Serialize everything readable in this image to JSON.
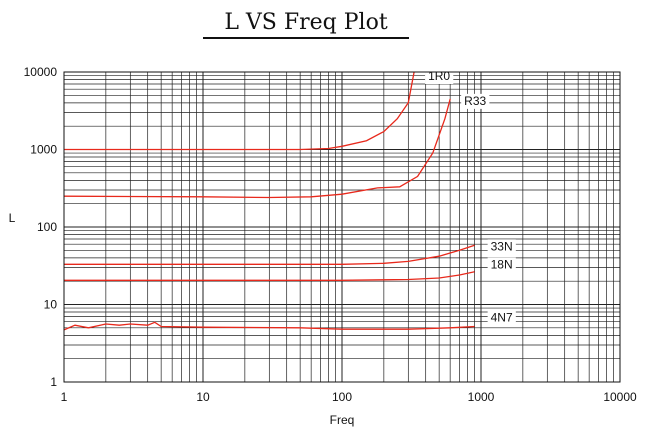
{
  "chart_data": {
    "type": "line",
    "title": "L VS Freq Plot",
    "xlabel": "Freq",
    "ylabel": "L",
    "xscale": "log",
    "yscale": "log",
    "xlim": [
      1,
      10000
    ],
    "ylim": [
      1,
      10000
    ],
    "grid": true,
    "legend": "inline labels at line ends",
    "line_color": "#e8291c",
    "x_ticks": [
      "1",
      "10",
      "100",
      "1000",
      "10000"
    ],
    "y_ticks": [
      "1",
      "10",
      "100",
      "1000",
      "10000"
    ],
    "series": [
      {
        "name": "1R0",
        "x": [
          1,
          10,
          50,
          80,
          100,
          150,
          200,
          250,
          300,
          330
        ],
        "y": [
          1000,
          1000,
          1000,
          1030,
          1100,
          1300,
          1700,
          2500,
          4000,
          10000
        ]
      },
      {
        "name": "R33",
        "x": [
          1,
          10,
          30,
          60,
          100,
          180,
          260,
          350,
          450,
          550,
          600
        ],
        "y": [
          250,
          245,
          240,
          245,
          265,
          320,
          330,
          450,
          900,
          2500,
          4500
        ]
      },
      {
        "name": "33N",
        "x": [
          1,
          10,
          100,
          200,
          300,
          500,
          700,
          900
        ],
        "y": [
          33,
          33,
          33,
          34,
          36,
          42,
          50,
          58
        ]
      },
      {
        "name": "18N",
        "x": [
          1,
          10,
          100,
          300,
          500,
          700,
          900
        ],
        "y": [
          20.5,
          20.5,
          20.5,
          21,
          22,
          24,
          26.5
        ]
      },
      {
        "name": "4N7",
        "x": [
          1,
          1.2,
          1.5,
          2,
          2.5,
          3,
          4,
          4.5,
          5,
          10,
          50,
          100,
          300,
          600,
          900
        ],
        "y": [
          4.7,
          5.4,
          5.0,
          5.6,
          5.4,
          5.6,
          5.4,
          5.9,
          5.2,
          5.1,
          5.0,
          4.8,
          4.8,
          5.0,
          5.2
        ]
      }
    ]
  }
}
